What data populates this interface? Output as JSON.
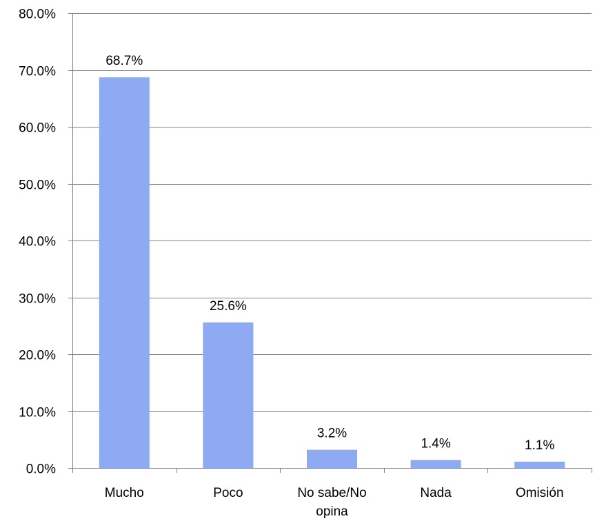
{
  "chart_data": {
    "type": "bar",
    "categories": [
      "Mucho",
      "Poco",
      "No sabe/No opina",
      "Nada",
      "Omisión"
    ],
    "category_lines": [
      [
        "Mucho"
      ],
      [
        "Poco"
      ],
      [
        "No sabe/No",
        "opina"
      ],
      [
        "Nada"
      ],
      [
        "Omisión"
      ]
    ],
    "values": [
      68.7,
      25.6,
      3.2,
      1.4,
      1.1
    ],
    "data_labels": [
      "68.7%",
      "25.6%",
      "3.2%",
      "1.4%",
      "1.1%"
    ],
    "title": "",
    "xlabel": "",
    "ylabel": "",
    "ylim": [
      0,
      80
    ],
    "yticks": [
      0,
      10,
      20,
      30,
      40,
      50,
      60,
      70,
      80
    ],
    "ytick_labels": [
      "0.0%",
      "10.0%",
      "20.0%",
      "30.0%",
      "40.0%",
      "50.0%",
      "60.0%",
      "70.0%",
      "80.0%"
    ],
    "grid": true,
    "legend": "none",
    "bar_color": "#8eaaf2",
    "grid_color": "#808080"
  }
}
